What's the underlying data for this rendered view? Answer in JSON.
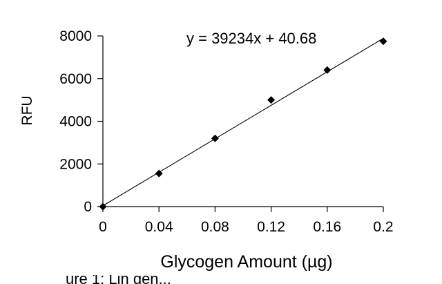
{
  "chart_data": {
    "type": "scatter",
    "title": "",
    "xlabel": "Glycogen Amount (µg)",
    "ylabel": "RFU",
    "xlim": [
      0,
      0.2
    ],
    "ylim": [
      0,
      8000
    ],
    "xticks": [
      "0",
      "0.04",
      "0.08",
      "0.12",
      "0.16",
      "0.2"
    ],
    "yticks": [
      "0",
      "2000",
      "4000",
      "6000",
      "8000"
    ],
    "xtick_values": [
      0,
      0.04,
      0.08,
      0.12,
      0.16,
      0.2
    ],
    "ytick_values": [
      0,
      2000,
      4000,
      6000,
      8000
    ],
    "series": [
      {
        "x": [
          0,
          0.04,
          0.08,
          0.12,
          0.16,
          0.2
        ],
        "y": [
          0,
          1550,
          3200,
          5000,
          6400,
          7750
        ],
        "marker": "diamond",
        "color": "#000000"
      }
    ],
    "trendline": {
      "slope": 39234,
      "intercept": 40.68,
      "label": "y = 39234x + 40.68"
    },
    "grid": false,
    "legend": "none"
  },
  "caption_fragment": "ure 1: Lin gen..."
}
